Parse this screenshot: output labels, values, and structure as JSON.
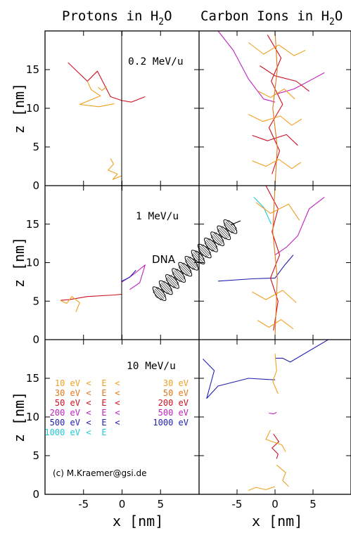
{
  "chart_data": {
    "type": "line",
    "column_titles": [
      {
        "pre": "Protons in H",
        "sub": "2",
        "post": "O"
      },
      {
        "pre": "Carbon Ions in H",
        "sub": "2",
        "post": "O"
      }
    ],
    "row_labels": [
      "0.2 MeV/u",
      "1 MeV/u",
      "10 MeV/u"
    ],
    "ylabel": "z [nm]",
    "xlabel": "x [nm]",
    "ylim": [
      0,
      20
    ],
    "xlim_left": [
      -10,
      10
    ],
    "xlim_right": [
      -10,
      10
    ],
    "yticks": [
      0,
      5,
      10,
      15
    ],
    "xticks": [
      -5,
      0,
      5
    ],
    "dna_label": "DNA",
    "credit": "(c) M.Kraemer@gsi.de",
    "legend": [
      {
        "lo": "10 eV",
        "op1": "<",
        "mid": "E",
        "op2": "<",
        "hi": "30 eV",
        "color": "#f0a020"
      },
      {
        "lo": "30 eV",
        "op1": "<",
        "mid": "E",
        "op2": "<",
        "hi": "50 eV",
        "color": "#e07818"
      },
      {
        "lo": "50 eV",
        "op1": "<",
        "mid": "E",
        "op2": "<",
        "hi": "200 eV",
        "color": "#cc1020"
      },
      {
        "lo": "200 eV",
        "op1": "<",
        "mid": "E",
        "op2": "<",
        "hi": "500 eV",
        "color": "#c020c0"
      },
      {
        "lo": "500 eV",
        "op1": "<",
        "mid": "E",
        "op2": "<",
        "hi": "1000 eV",
        "color": "#2020b0"
      },
      {
        "lo": "1000 eV",
        "op1": "<",
        "mid": "E",
        "op2": "",
        "hi": "",
        "color": "#20c8d8"
      }
    ],
    "series": [
      {
        "panel": "proton-0.2",
        "color": "#cc1020",
        "points": [
          [
            -7,
            15.9
          ],
          [
            -4.5,
            13.5
          ],
          [
            -3.2,
            14.8
          ],
          [
            -1.5,
            11.5
          ],
          [
            0,
            11
          ],
          [
            1.2,
            10.8
          ],
          [
            3,
            11.5
          ]
        ]
      },
      {
        "panel": "proton-0.2",
        "color": "#f0a020",
        "points": [
          [
            -4.5,
            13.5
          ],
          [
            -4,
            12.4
          ],
          [
            -2.8,
            11.6
          ],
          [
            -5.5,
            10.5
          ],
          [
            -3,
            10.2
          ],
          [
            -1,
            10.6
          ]
        ]
      },
      {
        "panel": "proton-0.2",
        "color": "#f0a020",
        "points": [
          [
            -1.5,
            3.5
          ],
          [
            -1.1,
            2.8
          ],
          [
            -1.8,
            2.0
          ],
          [
            -0.6,
            1.5
          ],
          [
            -1.2,
            0.8
          ],
          [
            0,
            1.3
          ]
        ]
      },
      {
        "panel": "proton-0.2",
        "color": "#f0a020",
        "points": [
          [
            -2,
            12.8
          ],
          [
            -2.6,
            12.3
          ],
          [
            -3.1,
            12.7
          ]
        ]
      },
      {
        "panel": "proton-1",
        "color": "#cc1020",
        "points": [
          [
            -8,
            5.1
          ],
          [
            -6.8,
            5.2
          ],
          [
            -4.5,
            5.6
          ],
          [
            -1,
            5.8
          ],
          [
            0,
            5.9
          ]
        ]
      },
      {
        "panel": "proton-1",
        "color": "#f0a020",
        "points": [
          [
            -8,
            5.1
          ],
          [
            -7.2,
            4.7
          ],
          [
            -6.5,
            5.6
          ],
          [
            -5.5,
            4.8
          ],
          [
            -6,
            3.6
          ]
        ]
      },
      {
        "panel": "proton-1",
        "color": "#c020c0",
        "points": [
          [
            0,
            7.5
          ],
          [
            1.4,
            8.4
          ],
          [
            3,
            9.7
          ],
          [
            2.3,
            7.4
          ],
          [
            1.0,
            6.5
          ]
        ]
      },
      {
        "panel": "proton-1",
        "color": "#2020b0",
        "points": [
          [
            0,
            7.6
          ],
          [
            1,
            8.1
          ],
          [
            1.8,
            9.0
          ]
        ]
      },
      {
        "panel": "carbon-0.2",
        "color": "#c020c0",
        "points": [
          [
            -7.5,
            20
          ],
          [
            -5.5,
            17.5
          ],
          [
            -3.5,
            13.8
          ],
          [
            -1.5,
            11.2
          ],
          [
            0,
            10.8
          ]
        ]
      },
      {
        "panel": "carbon-0.2",
        "color": "#c020c0",
        "points": [
          [
            0,
            11.8
          ],
          [
            2.5,
            12.5
          ],
          [
            5,
            13.8
          ],
          [
            6.5,
            14.6
          ]
        ]
      },
      {
        "panel": "carbon-0.2",
        "color": "#cc1020",
        "points": [
          [
            -1,
            19.5
          ],
          [
            0.8,
            16.5
          ],
          [
            -0.5,
            13.5
          ],
          [
            1,
            10.5
          ],
          [
            -0.8,
            7.5
          ],
          [
            0.6,
            4.5
          ],
          [
            -0.4,
            1.5
          ]
        ]
      },
      {
        "panel": "carbon-0.2",
        "color": "#cc1020",
        "points": [
          [
            -2,
            15.5
          ],
          [
            0,
            14.2
          ],
          [
            2.8,
            13.5
          ],
          [
            4.5,
            12.2
          ]
        ]
      },
      {
        "panel": "carbon-0.2",
        "color": "#cc1020",
        "points": [
          [
            -3,
            6.5
          ],
          [
            -1,
            5.8
          ],
          [
            1.5,
            6.6
          ],
          [
            3,
            5.2
          ]
        ]
      },
      {
        "panel": "carbon-0.2",
        "color": "#f0a020",
        "points": [
          [
            -3.5,
            18.5
          ],
          [
            -1.5,
            17
          ],
          [
            0.5,
            18.2
          ],
          [
            2.5,
            16.8
          ],
          [
            4,
            17.5
          ]
        ]
      },
      {
        "panel": "carbon-0.2",
        "color": "#f0a020",
        "points": [
          [
            -3.5,
            9.2
          ],
          [
            -1.6,
            8.3
          ],
          [
            0.7,
            9
          ],
          [
            2.2,
            7.8
          ],
          [
            3.5,
            8.6
          ]
        ]
      },
      {
        "panel": "carbon-0.2",
        "color": "#f0a020",
        "points": [
          [
            -3,
            3.2
          ],
          [
            -1.2,
            2.5
          ],
          [
            0.5,
            3.4
          ],
          [
            2.2,
            2.2
          ],
          [
            3.4,
            3
          ]
        ]
      },
      {
        "panel": "carbon-0.2",
        "color": "#f0a020",
        "points": [
          [
            -2.2,
            12.2
          ],
          [
            -0.6,
            11.4
          ],
          [
            1.2,
            12.5
          ],
          [
            2.6,
            11.2
          ]
        ]
      },
      {
        "panel": "carbon-0.2",
        "color": "#e07818",
        "points": [
          [
            0,
            20
          ],
          [
            0.3,
            15
          ],
          [
            -0.3,
            10
          ],
          [
            0.3,
            5
          ],
          [
            0,
            0
          ]
        ]
      },
      {
        "panel": "carbon-1",
        "color": "#c020c0",
        "points": [
          [
            0,
            11
          ],
          [
            1.5,
            12
          ],
          [
            3,
            13.5
          ],
          [
            4.5,
            17
          ],
          [
            6.5,
            18.5
          ]
        ]
      },
      {
        "panel": "carbon-1",
        "color": "#2020b0",
        "points": [
          [
            -7.5,
            7.6
          ],
          [
            -3,
            7.9
          ],
          [
            0,
            8
          ],
          [
            1.2,
            9.6
          ],
          [
            2.4,
            11
          ]
        ]
      },
      {
        "panel": "carbon-1",
        "color": "#20c8d8",
        "points": [
          [
            -2.8,
            18.5
          ],
          [
            -1.5,
            17.2
          ],
          [
            -0.5,
            15
          ]
        ]
      },
      {
        "panel": "carbon-1",
        "color": "#cc1020",
        "points": [
          [
            -1.2,
            20
          ],
          [
            0.4,
            17
          ],
          [
            -0.4,
            14
          ],
          [
            0.6,
            11
          ],
          [
            -0.6,
            8
          ],
          [
            0.4,
            5
          ],
          [
            -0.2,
            1.2
          ]
        ]
      },
      {
        "panel": "carbon-1",
        "color": "#f0a020",
        "points": [
          [
            -2.5,
            17.8
          ],
          [
            -0.6,
            16.4
          ],
          [
            1.8,
            17.6
          ],
          [
            3.2,
            15.5
          ]
        ]
      },
      {
        "panel": "carbon-1",
        "color": "#f0a020",
        "points": [
          [
            -3,
            6.2
          ],
          [
            -1.2,
            5.2
          ],
          [
            1,
            6.4
          ],
          [
            2.8,
            4.8
          ]
        ]
      },
      {
        "panel": "carbon-1",
        "color": "#f0a020",
        "points": [
          [
            -2.3,
            2.5
          ],
          [
            -0.8,
            1.6
          ],
          [
            0.8,
            2.6
          ],
          [
            2.4,
            1.4
          ]
        ]
      },
      {
        "panel": "carbon-1",
        "color": "#e07818",
        "points": [
          [
            0,
            20
          ],
          [
            -0.3,
            14
          ],
          [
            0.3,
            8
          ],
          [
            0,
            0.5
          ]
        ]
      },
      {
        "panel": "carbon-10",
        "color": "#2020b0",
        "points": [
          [
            -9.5,
            17.5
          ],
          [
            -8,
            16
          ],
          [
            -9,
            12.4
          ],
          [
            -7.5,
            14
          ],
          [
            -3.5,
            15
          ],
          [
            0,
            14.8
          ]
        ]
      },
      {
        "panel": "carbon-10",
        "color": "#2020b0",
        "points": [
          [
            0,
            17.6
          ],
          [
            1,
            17.6
          ],
          [
            2,
            17.1
          ],
          [
            7,
            20
          ]
        ]
      },
      {
        "panel": "carbon-10",
        "color": "#f0a020",
        "points": [
          [
            0,
            18.2
          ],
          [
            0.2,
            16
          ],
          [
            -0.3,
            14.6
          ],
          [
            0.4,
            13
          ]
        ]
      },
      {
        "panel": "carbon-10",
        "color": "#cc1020",
        "points": [
          [
            -0.2,
            7.8
          ],
          [
            0.5,
            6.8
          ],
          [
            -0.4,
            6
          ],
          [
            0.4,
            5.2
          ],
          [
            0.2,
            4.6
          ]
        ]
      },
      {
        "panel": "carbon-10",
        "color": "#f0a020",
        "points": [
          [
            -0.6,
            8.3
          ],
          [
            -1.2,
            7.1
          ],
          [
            0.9,
            6.4
          ],
          [
            1.4,
            5.5
          ]
        ]
      },
      {
        "panel": "carbon-10",
        "color": "#f0a020",
        "points": [
          [
            0.2,
            3.8
          ],
          [
            1.4,
            2.8
          ],
          [
            1,
            1.8
          ],
          [
            1.8,
            1
          ]
        ]
      },
      {
        "panel": "carbon-10",
        "color": "#f0a020",
        "points": [
          [
            -3.5,
            0.5
          ],
          [
            -2.5,
            0.9
          ],
          [
            -1.2,
            0.6
          ],
          [
            0,
            1
          ]
        ]
      },
      {
        "panel": "carbon-10",
        "color": "#c020c0",
        "points": [
          [
            -0.8,
            10.5
          ],
          [
            -0.2,
            10.4
          ],
          [
            0.2,
            10.6
          ]
        ]
      }
    ]
  }
}
